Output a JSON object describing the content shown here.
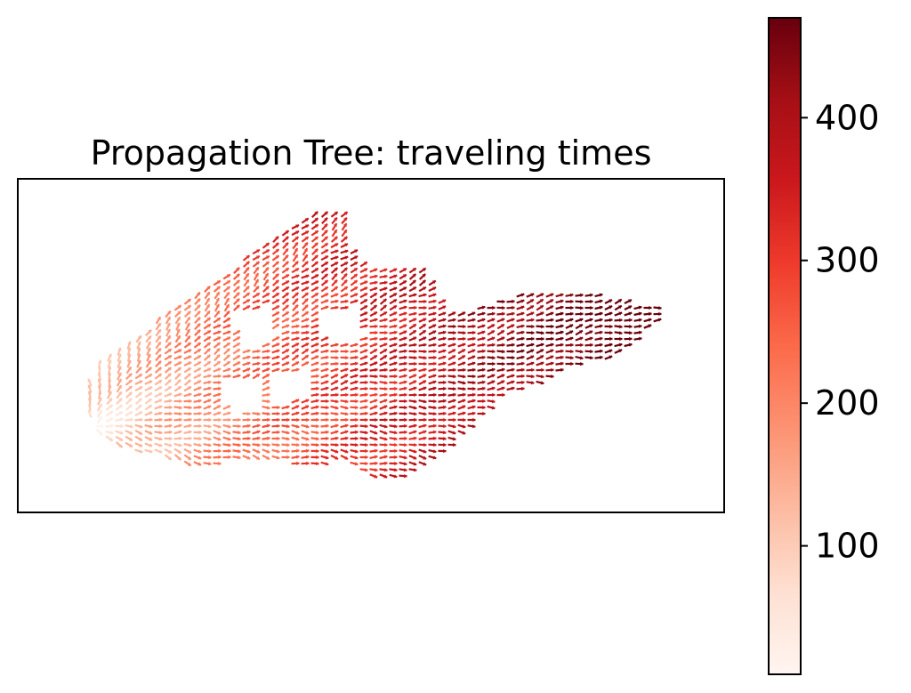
{
  "chart_data": {
    "type": "quiver",
    "title": "Propagation Tree: traveling times",
    "xlabel": "",
    "ylabel": "",
    "axes_ticks_shown": false,
    "colormap": "Reds",
    "colorbar": {
      "range": [
        10,
        470
      ],
      "ticks": [
        100,
        200,
        300,
        400
      ],
      "tick_labels": [
        "100",
        "200",
        "300",
        "400"
      ],
      "position": "right"
    },
    "source_point": "left tip of the region (minimum travel time)",
    "description_of_field": "Arrow field of propagation directions; arrows point away from the source at the left tip, colored by traveling time which increases with distance from the source."
  }
}
